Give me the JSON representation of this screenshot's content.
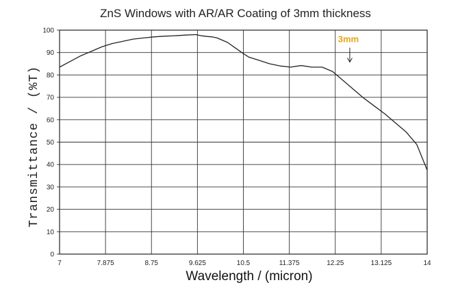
{
  "chart_data": {
    "type": "line",
    "title": "ZnS Windows with AR/AR Coating of 3mm thickness",
    "xlabel": "Wavelength / (micron)",
    "ylabel": "Transmittance / (%T)",
    "xlim": [
      7,
      14
    ],
    "ylim": [
      0,
      100
    ],
    "x_ticks": [
      "7",
      "7.875",
      "8.75",
      "9.625",
      "10.5",
      "11.375",
      "12.25",
      "13.125",
      "14"
    ],
    "y_ticks": [
      "0",
      "10",
      "20",
      "30",
      "40",
      "50",
      "60",
      "70",
      "80",
      "90",
      "100"
    ],
    "grid": true,
    "annotation": {
      "text": "3mm",
      "color": "#e8a317",
      "x": 12.5,
      "y": 83
    },
    "series": [
      {
        "color": "#222222",
        "x": [
          7.0,
          7.2,
          7.4,
          7.6,
          7.8,
          8.0,
          8.2,
          8.4,
          8.6,
          8.8,
          9.0,
          9.2,
          9.4,
          9.6,
          9.7,
          9.8,
          9.9,
          10.0,
          10.2,
          10.35,
          10.5,
          10.6,
          10.8,
          11.0,
          11.2,
          11.4,
          11.6,
          11.8,
          12.0,
          12.2,
          12.4,
          12.6,
          12.8,
          13.0,
          13.2,
          13.4,
          13.6,
          13.8,
          14.0
        ],
        "y": [
          83.5,
          86,
          88.5,
          90.5,
          92.5,
          94,
          95,
          96,
          96.5,
          97,
          97.3,
          97.5,
          97.8,
          98,
          97.5,
          97.2,
          97,
          96.5,
          94.5,
          92,
          89.5,
          88,
          86.5,
          85,
          84,
          83.5,
          84.2,
          83.5,
          83.5,
          81.5,
          77.5,
          73.5,
          69.5,
          66,
          62.5,
          58.5,
          54.5,
          49,
          37.5
        ]
      }
    ]
  }
}
